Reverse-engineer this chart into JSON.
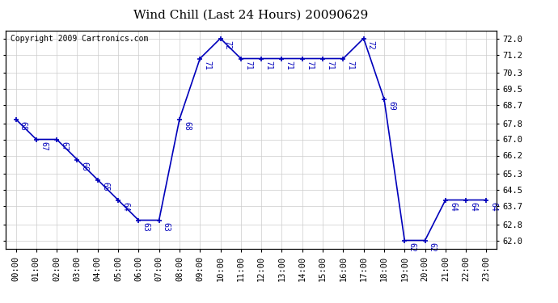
{
  "title": "Wind Chill (Last 24 Hours) 20090629",
  "copyright": "Copyright 2009 Cartronics.com",
  "hours": [
    0,
    1,
    2,
    3,
    4,
    5,
    6,
    7,
    8,
    9,
    10,
    11,
    12,
    13,
    14,
    15,
    16,
    17,
    18,
    19,
    20,
    21,
    22,
    23
  ],
  "values": [
    68,
    67,
    67,
    66,
    65,
    64,
    63,
    63,
    68,
    71,
    72,
    71,
    71,
    71,
    71,
    71,
    71,
    72,
    69,
    62,
    62,
    64,
    64,
    64
  ],
  "x_labels": [
    "00:00",
    "01:00",
    "02:00",
    "03:00",
    "04:00",
    "05:00",
    "06:00",
    "07:00",
    "08:00",
    "09:00",
    "10:00",
    "11:00",
    "12:00",
    "13:00",
    "14:00",
    "15:00",
    "16:00",
    "17:00",
    "18:00",
    "19:00",
    "20:00",
    "21:00",
    "22:00",
    "23:00"
  ],
  "y_ticks": [
    62.0,
    62.8,
    63.7,
    64.5,
    65.3,
    66.2,
    67.0,
    67.8,
    68.7,
    69.5,
    70.3,
    71.2,
    72.0
  ],
  "ylim": [
    61.6,
    72.4
  ],
  "line_color": "#0000bb",
  "marker_color": "#0000bb",
  "grid_color": "#cccccc",
  "bg_color": "#ffffff",
  "title_fontsize": 11,
  "label_fontsize": 7.5,
  "annotation_fontsize": 7,
  "copyright_fontsize": 7
}
